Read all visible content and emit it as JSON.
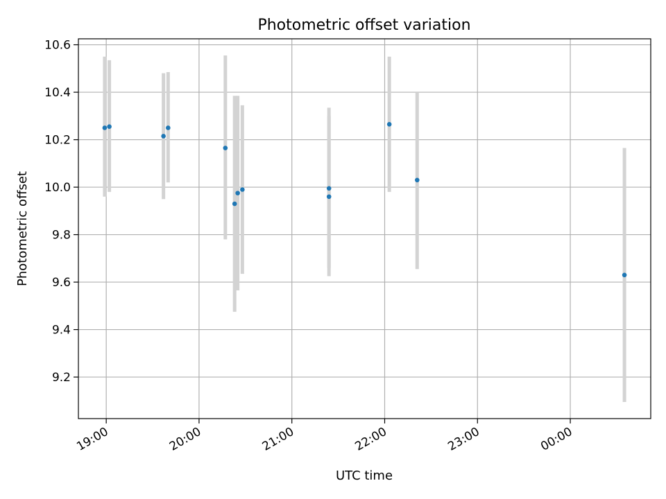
{
  "chart_data": {
    "type": "scatter",
    "title": "Photometric offset variation",
    "xlabel": "UTC time",
    "ylabel": "Photometric offset",
    "x_ticks": [
      "19:00",
      "20:00",
      "21:00",
      "22:00",
      "23:00",
      "00:00"
    ],
    "y_ticks": [
      "9.2",
      "9.4",
      "9.6",
      "9.8",
      "10.0",
      "10.2",
      "10.4",
      "10.6"
    ],
    "xlim": [
      "18:42",
      "00:52"
    ],
    "ylim": [
      9.025,
      10.625
    ],
    "grid": true,
    "points": [
      {
        "time": "18:59",
        "offset": 10.25,
        "err_low": 9.96,
        "err_high": 10.55
      },
      {
        "time": "19:02",
        "offset": 10.255,
        "err_low": 9.98,
        "err_high": 10.535
      },
      {
        "time": "19:37",
        "offset": 10.215,
        "err_low": 9.95,
        "err_high": 10.48
      },
      {
        "time": "19:40",
        "offset": 10.25,
        "err_low": 10.02,
        "err_high": 10.485
      },
      {
        "time": "20:17",
        "offset": 10.165,
        "err_low": 9.78,
        "err_high": 10.555
      },
      {
        "time": "20:23",
        "offset": 9.93,
        "err_low": 9.475,
        "err_high": 10.385
      },
      {
        "time": "20:25",
        "offset": 9.975,
        "err_low": 9.565,
        "err_high": 10.385
      },
      {
        "time": "20:28",
        "offset": 9.99,
        "err_low": 9.635,
        "err_high": 10.345
      },
      {
        "time": "21:24",
        "offset": 9.995,
        "err_low": 9.66,
        "err_high": 10.335
      },
      {
        "time": "21:24",
        "offset": 9.96,
        "err_low": 9.625,
        "err_high": 10.3
      },
      {
        "time": "22:03",
        "offset": 10.265,
        "err_low": 9.98,
        "err_high": 10.55
      },
      {
        "time": "22:21",
        "offset": 10.03,
        "err_low": 9.655,
        "err_high": 10.4
      },
      {
        "time": "00:35",
        "offset": 9.63,
        "err_low": 9.095,
        "err_high": 10.165
      }
    ],
    "colors": {
      "point": "#1f77b4",
      "errorbar": "#d3d3d3",
      "grid": "#b0b0b0",
      "axes": "#000000"
    }
  }
}
